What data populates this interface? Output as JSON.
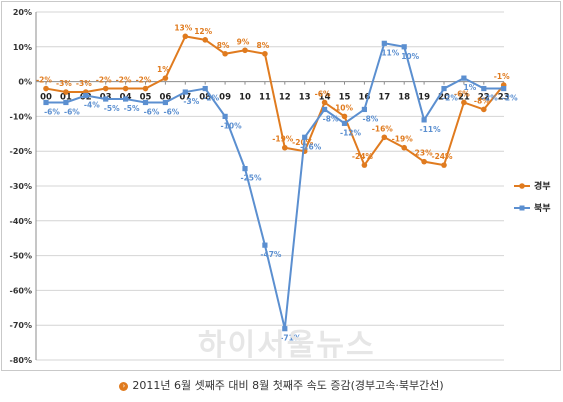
{
  "chart_data": {
    "type": "line",
    "categories": [
      "00",
      "01",
      "02",
      "03",
      "04",
      "05",
      "06",
      "07",
      "08",
      "09",
      "10",
      "11",
      "12",
      "13",
      "14",
      "15",
      "16",
      "17",
      "18",
      "19",
      "20",
      "21",
      "22",
      "23"
    ],
    "series": [
      {
        "name": "경부",
        "color": "#e07b1f",
        "marker": "circle",
        "values": [
          -2,
          -3,
          -3,
          -2,
          -2,
          -2,
          1,
          13,
          12,
          8,
          9,
          8,
          -19,
          -20,
          -6,
          -10,
          -24,
          -16,
          -19,
          -23,
          -24,
          -6,
          -8,
          -1
        ]
      },
      {
        "name": "북부",
        "color": "#5b8fd0",
        "marker": "square",
        "values": [
          -6,
          -6,
          -4,
          -5,
          -5,
          -6,
          -6,
          -3,
          -2,
          -10,
          -25,
          -47,
          -71,
          -16,
          -8,
          -12,
          -8,
          11,
          10,
          -11,
          -2,
          1,
          -2,
          -2
        ]
      }
    ],
    "ylim": [
      -80,
      20
    ],
    "ytick_step": 10,
    "ytick_format": "{v}%",
    "grid": true,
    "legend_position": "right"
  },
  "caption": "2011년 6월 셋째주 대비 8월 첫째주 속도 증감(경부고속·북부간선)",
  "watermark": "하이서울뉴스"
}
